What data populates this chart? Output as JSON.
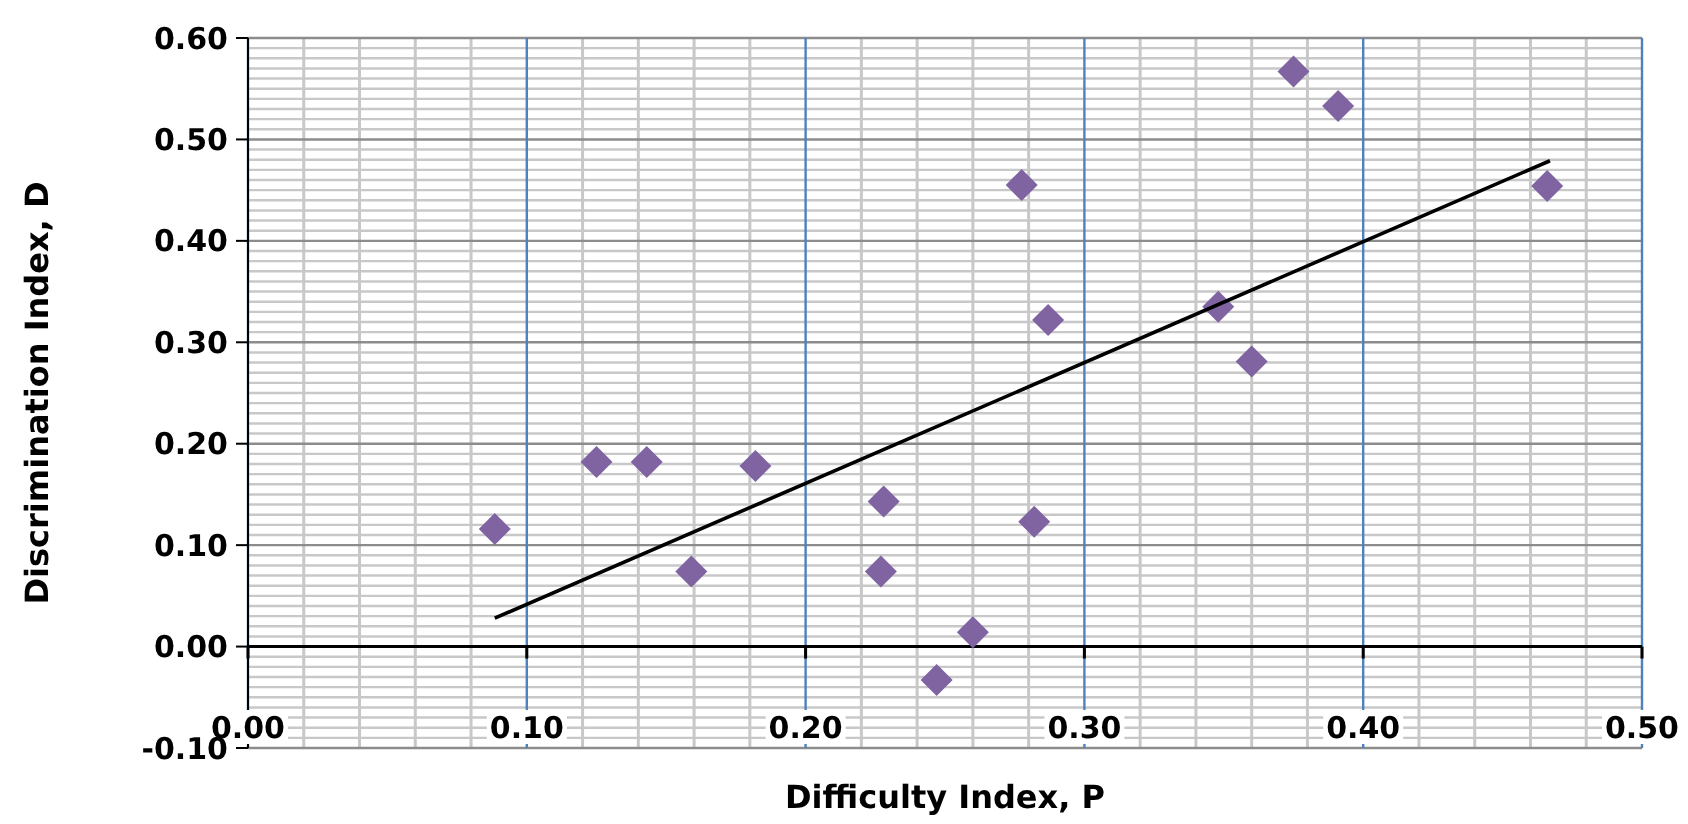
{
  "chart_data": {
    "type": "scatter",
    "xlabel": "Difficulty Index, P",
    "ylabel": "Discrimination Index, D",
    "x": [
      0.0885,
      0.125,
      0.143,
      0.159,
      0.182,
      0.228,
      0.227,
      0.247,
      0.26,
      0.2775,
      0.282,
      0.287,
      0.348,
      0.36,
      0.375,
      0.391,
      0.466
    ],
    "series": [
      {
        "color": "#8064a2",
        "marker": "diamond",
        "values": [
          0.116,
          0.182,
          0.182,
          0.074,
          0.178,
          0.143,
          0.074,
          -0.033,
          0.014,
          0.455,
          0.123,
          0.322,
          0.335,
          0.281,
          0.567,
          0.533,
          0.454
        ]
      },
      {
        "type": "line",
        "color": "#000000",
        "marker": "none",
        "x": [
          0.0885,
          0.467
        ],
        "values": [
          0.028,
          0.479
        ]
      }
    ],
    "xlim": [
      0,
      0.5
    ],
    "xticks": [
      {
        "value": 0,
        "label": "0.00"
      },
      {
        "value": 0.1,
        "label": "0.10"
      },
      {
        "value": 0.2,
        "label": "0.20"
      },
      {
        "value": 0.3,
        "label": "0.30"
      },
      {
        "value": 0.4,
        "label": "0.40"
      },
      {
        "value": 0.5,
        "label": "0.50"
      }
    ],
    "ylim": [
      -0.1,
      0.6
    ],
    "yticks": [
      {
        "value": -0.1,
        "label": "-0.10"
      },
      {
        "value": 0,
        "label": "0.00"
      },
      {
        "value": 0.1,
        "label": "0.10"
      },
      {
        "value": 0.2,
        "label": "0.20"
      },
      {
        "value": 0.3,
        "label": "0.30"
      },
      {
        "value": 0.4,
        "label": "0.40"
      },
      {
        "value": 0.5,
        "label": "0.50"
      },
      {
        "value": 0.6,
        "label": "0.60"
      }
    ],
    "grid": true
  }
}
